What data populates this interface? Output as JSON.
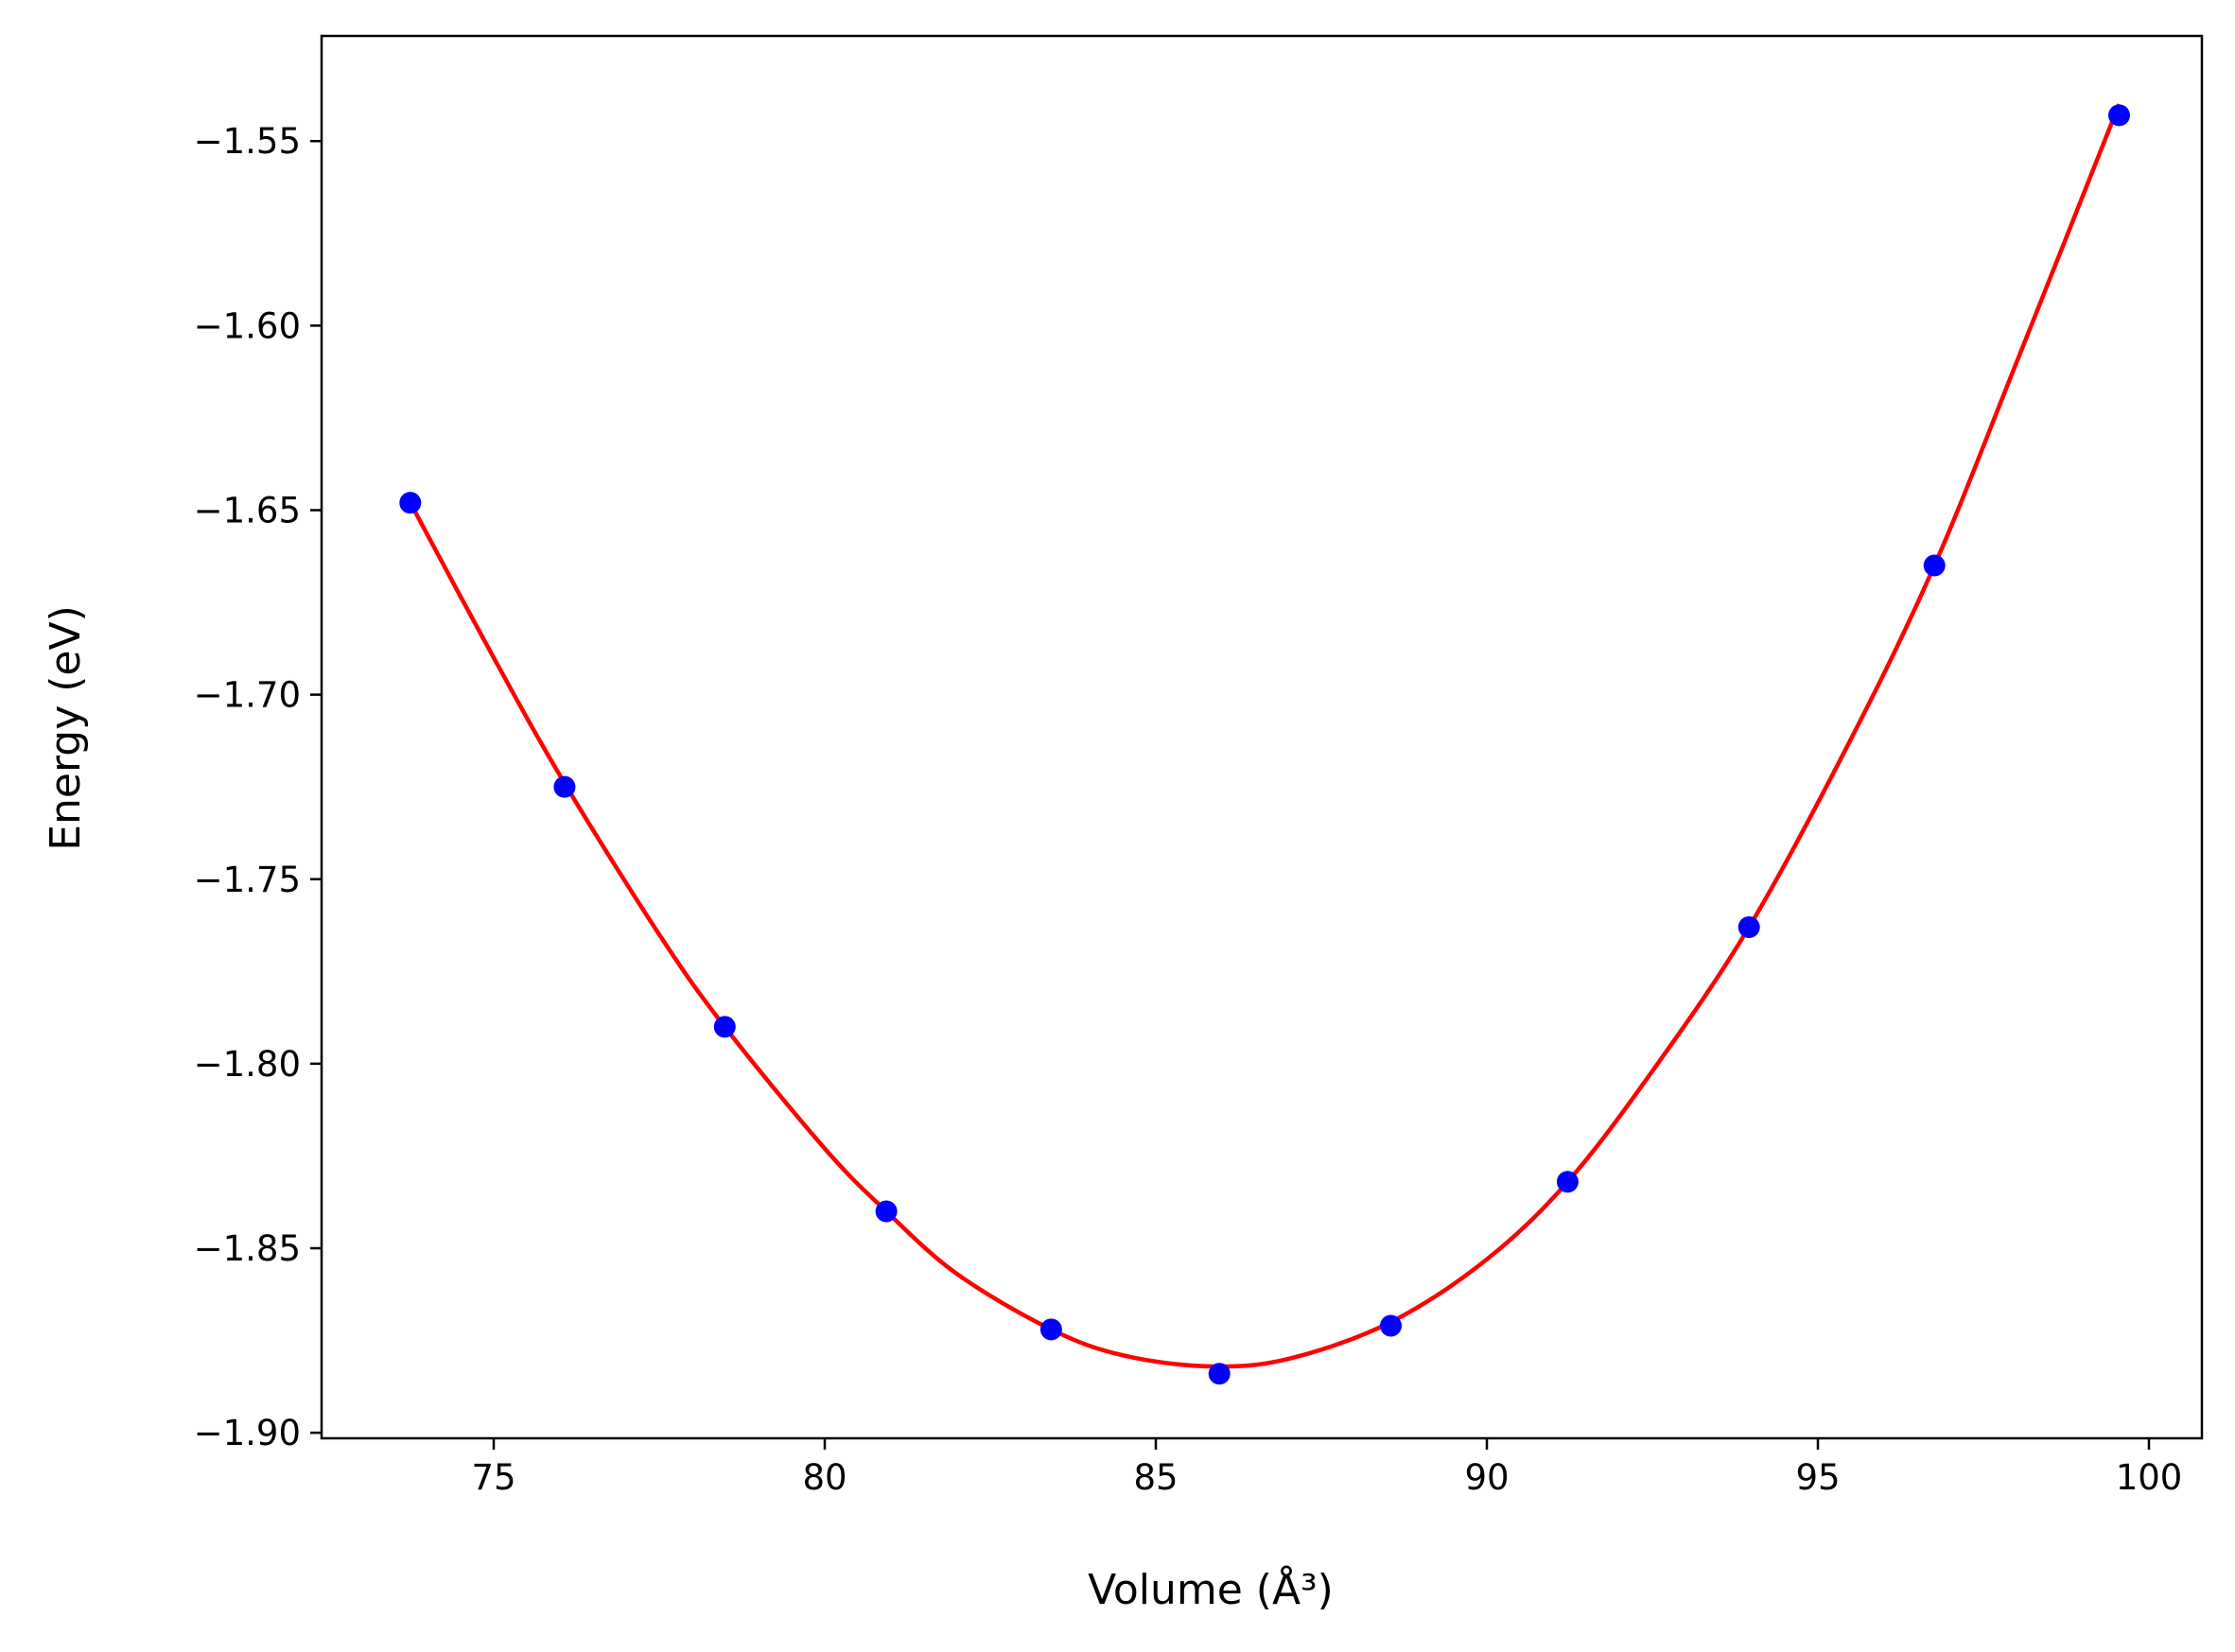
{
  "chart_data": {
    "type": "scatter",
    "title": "",
    "xlabel": "Volume (Å³)",
    "ylabel": "Energy (eV)",
    "xlim": [
      72.4,
      100.8
    ],
    "ylim": [
      -1.9015,
      -1.5215
    ],
    "grid": false,
    "legend": "none",
    "x_ticks": [
      75,
      80,
      85,
      90,
      95,
      100
    ],
    "y_ticks": [
      -1.9,
      -1.85,
      -1.8,
      -1.75,
      -1.7,
      -1.65,
      -1.6,
      -1.55
    ],
    "series": [
      {
        "kind": "points",
        "color": "#0000ff",
        "x": [
          73.74,
          76.07,
          78.49,
          80.93,
          83.42,
          85.96,
          88.55,
          91.22,
          93.96,
          96.76,
          99.55
        ],
        "y": [
          -1.648,
          -1.725,
          -1.79,
          -1.84,
          -1.872,
          -1.884,
          -1.871,
          -1.832,
          -1.763,
          -1.665,
          -1.543
        ]
      },
      {
        "kind": "fit_curve",
        "color": "#ff0000",
        "x": [
          73.74,
          75.0,
          76.07,
          77.5,
          78.49,
          80.0,
          80.93,
          82.0,
          83.42,
          84.5,
          85.8,
          87.0,
          88.55,
          90.0,
          91.22,
          92.5,
          93.96,
          95.5,
          96.76,
          98.0,
          99.55
        ],
        "y": [
          -1.648,
          -1.69,
          -1.724,
          -1.765,
          -1.79,
          -1.823,
          -1.84,
          -1.857,
          -1.872,
          -1.879,
          -1.882,
          -1.88,
          -1.87,
          -1.853,
          -1.832,
          -1.802,
          -1.763,
          -1.712,
          -1.665,
          -1.61,
          -1.54
        ]
      }
    ]
  }
}
